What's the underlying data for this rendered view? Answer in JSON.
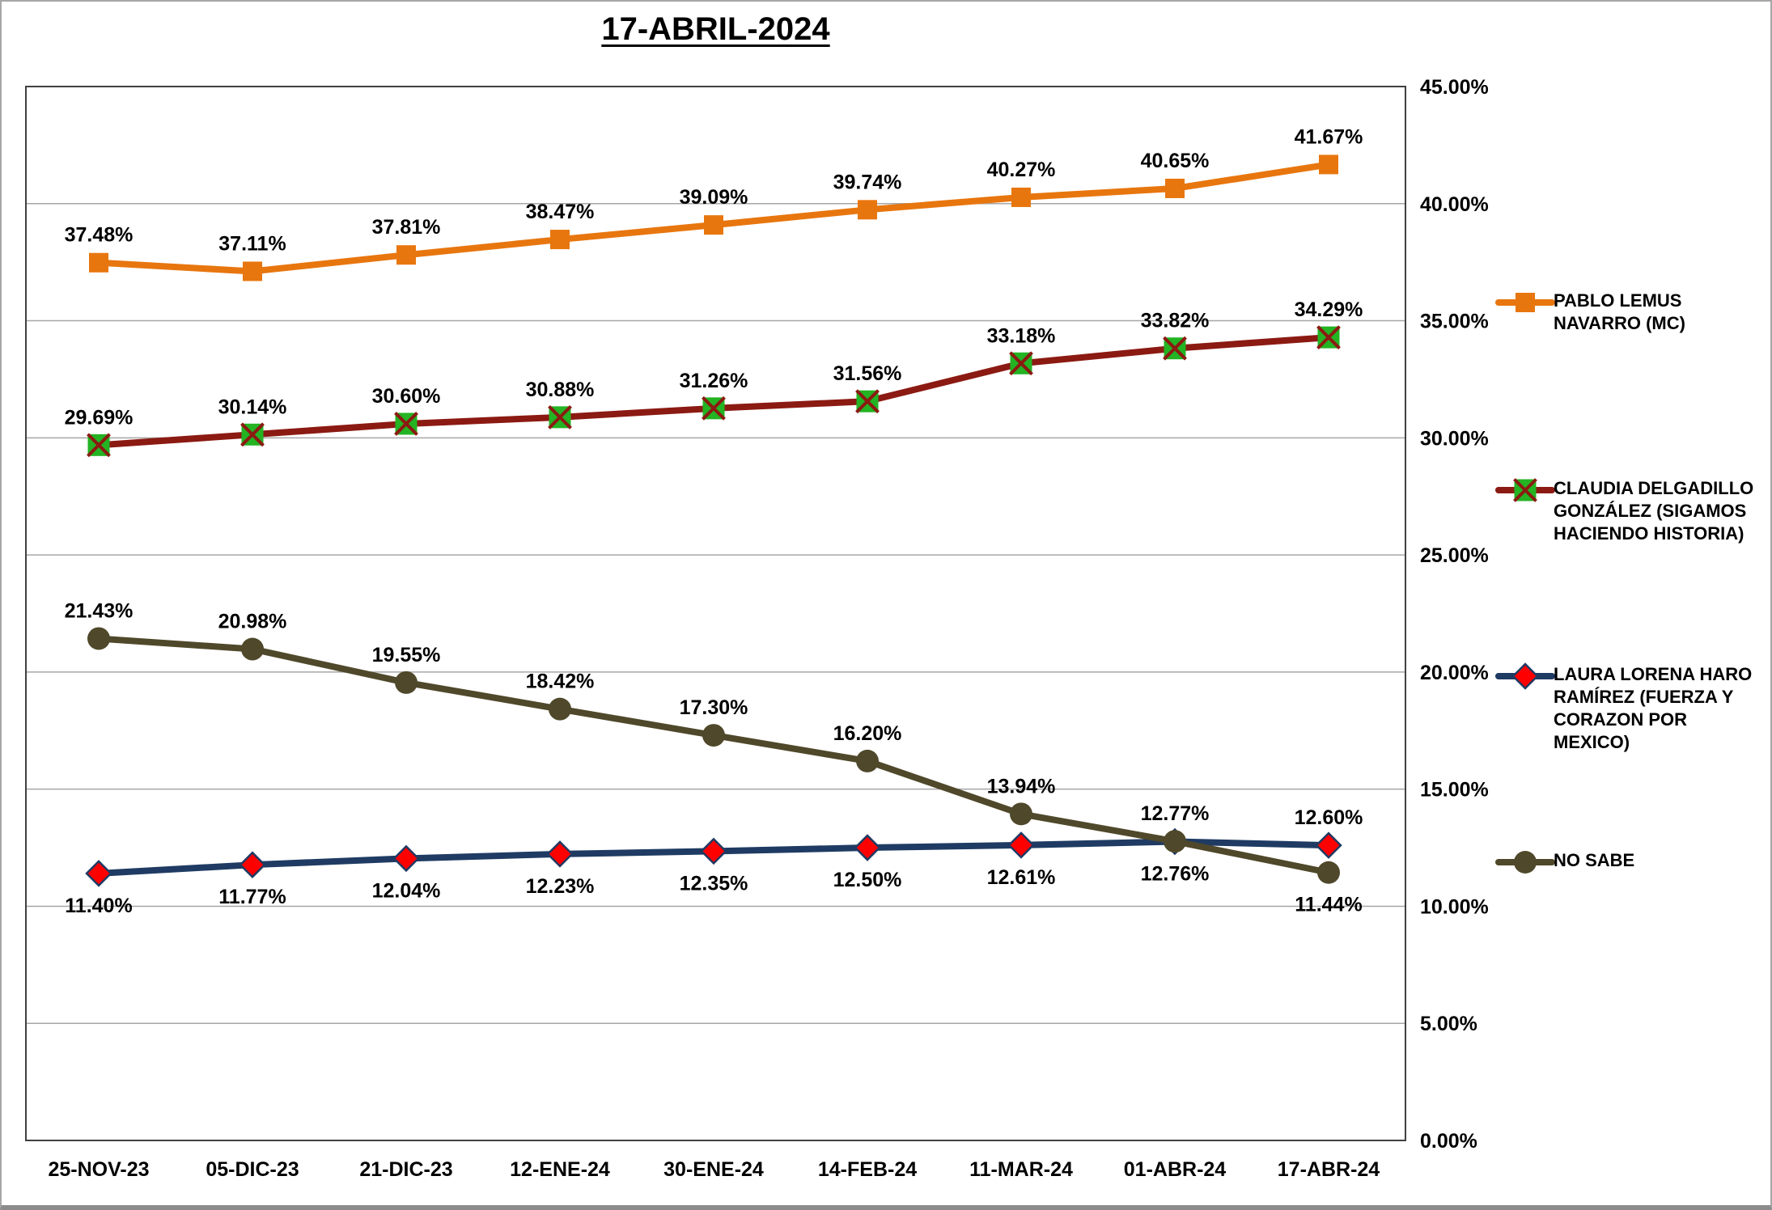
{
  "title": "17-ABRIL-2024",
  "chart_data": {
    "type": "line",
    "title": "17-ABRIL-2024",
    "categories": [
      "25-NOV-23",
      "05-DIC-23",
      "21-DIC-23",
      "12-ENE-24",
      "30-ENE-24",
      "14-FEB-24",
      "11-MAR-24",
      "01-ABR-24",
      "17-ABR-24"
    ],
    "ylim": [
      0,
      45
    ],
    "ytick_step": 5,
    "ytick_labels": [
      "0.00%",
      "5.00%",
      "10.00%",
      "15.00%",
      "20.00%",
      "25.00%",
      "30.00%",
      "35.00%",
      "40.00%",
      "45.00%"
    ],
    "y_axis_side": "right",
    "grid": true,
    "legend_position": "right",
    "colors": {
      "gridline": "#a6a6a6",
      "plot_border": "#404040",
      "text": "#000000"
    },
    "series": [
      {
        "name": "PABLO LEMUS NAVARRO (MC)",
        "color": "#e8760e",
        "marker": "square",
        "marker_color": "#e8760e",
        "values": [
          37.48,
          37.11,
          37.81,
          38.47,
          39.09,
          39.74,
          40.27,
          40.65,
          41.67
        ],
        "labels": [
          "37.48%",
          "37.11%",
          "37.81%",
          "38.47%",
          "39.09%",
          "39.74%",
          "40.27%",
          "40.65%",
          "41.67%"
        ],
        "label_side": [
          "above",
          "above",
          "above",
          "above",
          "above",
          "above",
          "above",
          "above",
          "above"
        ]
      },
      {
        "name": "CLAUDIA DELGADILLO GONZÁLEZ (SIGAMOS HACIENDO HISTORIA)",
        "color": "#8b1a12",
        "marker": "x-square",
        "marker_color": "#23b323",
        "values": [
          29.69,
          30.14,
          30.6,
          30.88,
          31.26,
          31.56,
          33.18,
          33.82,
          34.29
        ],
        "labels": [
          "29.69%",
          "30.14%",
          "30.60%",
          "30.88%",
          "31.26%",
          "31.56%",
          "33.18%",
          "33.82%",
          "34.29%"
        ],
        "label_side": [
          "above",
          "above",
          "above",
          "above",
          "above",
          "above",
          "above",
          "above",
          "above"
        ]
      },
      {
        "name": "LAURA LORENA HARO RAMÍREZ (FUERZA Y CORAZON POR MEXICO)",
        "color": "#1f3b63",
        "marker": "diamond",
        "marker_color": "#fe0000",
        "values": [
          11.4,
          11.77,
          12.04,
          12.23,
          12.35,
          12.5,
          12.61,
          12.76,
          12.6
        ],
        "labels": [
          "11.40%",
          "11.77%",
          "12.04%",
          "12.23%",
          "12.35%",
          "12.50%",
          "12.61%",
          "12.76%",
          "12.60%"
        ],
        "label_side": [
          "below",
          "below",
          "below",
          "below",
          "below",
          "below",
          "below",
          "below",
          "above"
        ]
      },
      {
        "name": "NO SABE",
        "color": "#4f482a",
        "marker": "circle",
        "marker_color": "#4f482a",
        "values": [
          21.43,
          20.98,
          19.55,
          18.42,
          17.3,
          16.2,
          13.94,
          12.77,
          11.44
        ],
        "labels": [
          "21.43%",
          "20.98%",
          "19.55%",
          "18.42%",
          "17.30%",
          "16.20%",
          "13.94%",
          "12.77%",
          "11.44%"
        ],
        "label_side": [
          "above",
          "above",
          "above",
          "above",
          "above",
          "above",
          "above",
          "above",
          "below"
        ]
      }
    ]
  }
}
